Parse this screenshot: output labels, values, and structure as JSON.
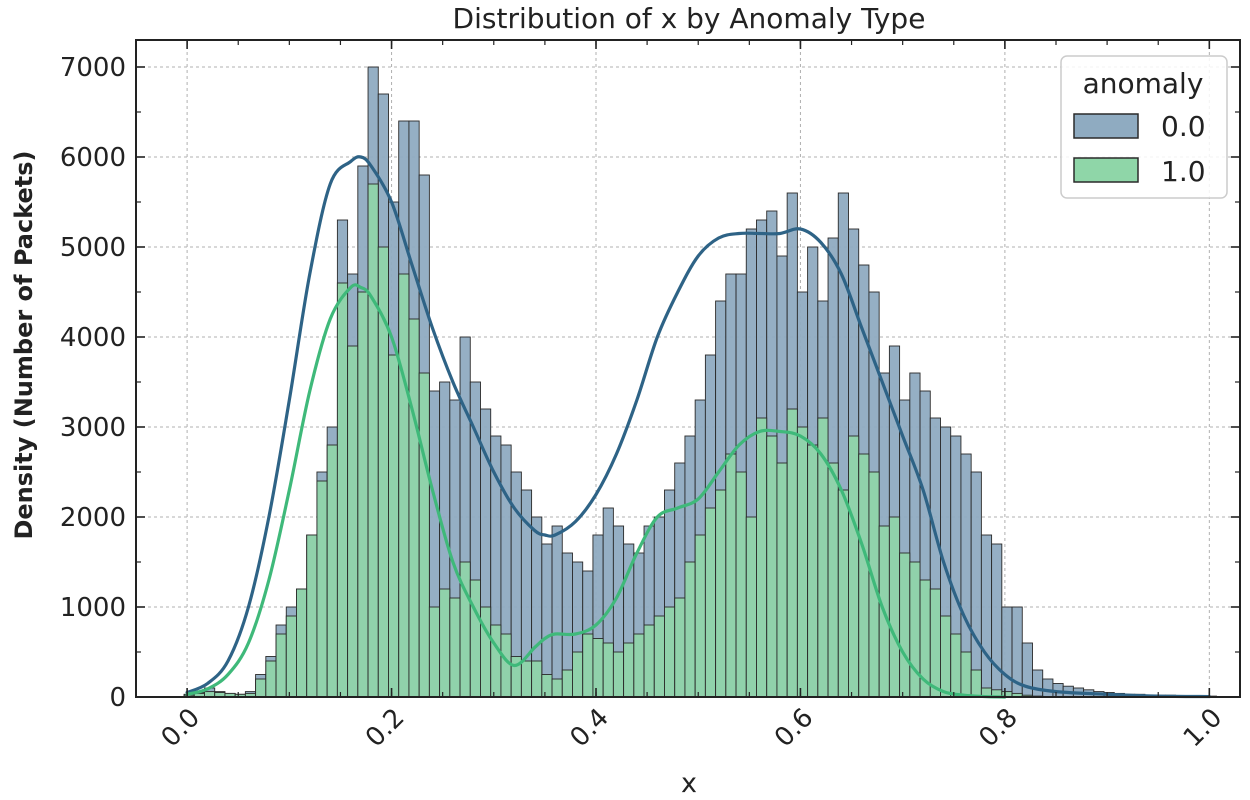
{
  "chart_data": {
    "type": "bar",
    "subtype": "histogram_with_kde",
    "title": "Distribution of x by Anomaly Type",
    "xlabel": "x",
    "ylabel": "Density (Number of Packets)",
    "xlim": [
      -0.05,
      1.03
    ],
    "ylim": [
      0,
      7300
    ],
    "grid": true,
    "xticks": [
      0.0,
      0.2,
      0.4,
      0.6,
      0.8,
      1.0
    ],
    "xtick_labels": [
      "0.0",
      "0.2",
      "0.4",
      "0.6",
      "0.8",
      "1.0"
    ],
    "yticks": [
      0,
      1000,
      2000,
      3000,
      4000,
      5000,
      6000,
      7000
    ],
    "ytick_labels": [
      "0",
      "1000",
      "2000",
      "3000",
      "4000",
      "5000",
      "6000",
      "7000"
    ],
    "legend": {
      "title": "anomaly",
      "placement": "top-right",
      "entries": [
        "0.0",
        "1.0"
      ]
    },
    "bin_start": -0.003,
    "bin_width": 0.01,
    "series": [
      {
        "name": "0.0",
        "color": "#557fa3",
        "fill": "#8fabc1",
        "kde_color": "#2e6386",
        "counts": [
          30,
          50,
          100,
          60,
          40,
          30,
          60,
          250,
          450,
          800,
          1000,
          1200,
          1800,
          2500,
          3000,
          5300,
          4700,
          5900,
          7000,
          6700,
          5500,
          6400,
          6400,
          5800,
          3400,
          3500,
          3300,
          4000,
          3500,
          3200,
          2900,
          2800,
          2500,
          2300,
          2000,
          1700,
          1900,
          1600,
          1500,
          1400,
          1800,
          2100,
          1900,
          1700,
          1600,
          1900,
          2000,
          2300,
          2600,
          2900,
          3300,
          3800,
          4400,
          4700,
          4700,
          5200,
          5300,
          5400,
          4900,
          5600,
          4500,
          5000,
          4400,
          5100,
          5600,
          5200,
          4800,
          4500,
          3600,
          3900,
          3300,
          3600,
          3400,
          3100,
          3000,
          2900,
          2700,
          2500,
          1800,
          1700,
          1000,
          1000,
          600,
          300,
          200,
          150,
          120,
          100,
          80,
          60,
          50,
          40,
          30,
          30,
          20,
          20,
          20,
          10,
          10,
          10,
          10
        ]
      },
      {
        "name": "1.0",
        "color": "#3a8a5c",
        "fill": "#8fd6a8",
        "kde_color": "#3fb97a",
        "counts": [
          20,
          40,
          60,
          50,
          40,
          30,
          40,
          200,
          400,
          700,
          900,
          1200,
          1800,
          2400,
          2800,
          4600,
          3900,
          4500,
          5700,
          5000,
          3800,
          4700,
          4200,
          3600,
          1000,
          1200,
          1100,
          1500,
          1300,
          1000,
          800,
          700,
          450,
          400,
          400,
          250,
          200,
          300,
          500,
          700,
          650,
          600,
          500,
          600,
          700,
          800,
          900,
          1000,
          1100,
          1500,
          1800,
          2100,
          2300,
          2700,
          2500,
          2000,
          3100,
          2900,
          2600,
          3200,
          3000,
          2800,
          3100,
          2600,
          2300,
          2900,
          2700,
          2500,
          1900,
          2000,
          1600,
          1500,
          1300,
          1200,
          900,
          700,
          500,
          300,
          100,
          80,
          60,
          40,
          20,
          10,
          0,
          0,
          0,
          0,
          0,
          0,
          0,
          0,
          0,
          0,
          0,
          0,
          0,
          0,
          0,
          0
        ]
      }
    ],
    "kde": [
      {
        "name": "0.0",
        "x": [
          0.0,
          0.02,
          0.04,
          0.06,
          0.08,
          0.1,
          0.12,
          0.14,
          0.16,
          0.17,
          0.18,
          0.2,
          0.22,
          0.24,
          0.26,
          0.28,
          0.3,
          0.32,
          0.34,
          0.35,
          0.36,
          0.38,
          0.4,
          0.42,
          0.44,
          0.46,
          0.48,
          0.5,
          0.52,
          0.54,
          0.56,
          0.58,
          0.6,
          0.62,
          0.64,
          0.66,
          0.68,
          0.7,
          0.72,
          0.74,
          0.76,
          0.78,
          0.8,
          0.82,
          0.85,
          0.9,
          0.95,
          1.0
        ],
        "y": [
          50,
          150,
          400,
          1000,
          2000,
          3300,
          4700,
          5700,
          5950,
          6000,
          5900,
          5500,
          4800,
          4100,
          3500,
          3000,
          2500,
          2100,
          1850,
          1800,
          1800,
          1950,
          2250,
          2700,
          3300,
          4000,
          4500,
          4900,
          5100,
          5150,
          5150,
          5150,
          5200,
          5050,
          4700,
          4100,
          3500,
          2900,
          2300,
          1500,
          900,
          500,
          250,
          120,
          60,
          30,
          10,
          5
        ]
      },
      {
        "name": "1.0",
        "x": [
          0.0,
          0.02,
          0.04,
          0.06,
          0.08,
          0.1,
          0.12,
          0.14,
          0.16,
          0.17,
          0.18,
          0.2,
          0.22,
          0.24,
          0.26,
          0.28,
          0.3,
          0.32,
          0.34,
          0.35,
          0.36,
          0.38,
          0.4,
          0.42,
          0.44,
          0.46,
          0.48,
          0.5,
          0.52,
          0.54,
          0.56,
          0.58,
          0.6,
          0.62,
          0.64,
          0.66,
          0.68,
          0.7,
          0.72,
          0.74,
          0.76,
          0.78,
          0.8
        ],
        "y": [
          30,
          90,
          250,
          600,
          1300,
          2300,
          3400,
          4200,
          4550,
          4550,
          4450,
          4000,
          3200,
          2300,
          1500,
          1000,
          600,
          350,
          550,
          650,
          700,
          700,
          800,
          1100,
          1600,
          2000,
          2100,
          2200,
          2500,
          2800,
          2950,
          2950,
          2900,
          2700,
          2300,
          1700,
          1000,
          500,
          200,
          60,
          20,
          5,
          0
        ]
      }
    ]
  }
}
